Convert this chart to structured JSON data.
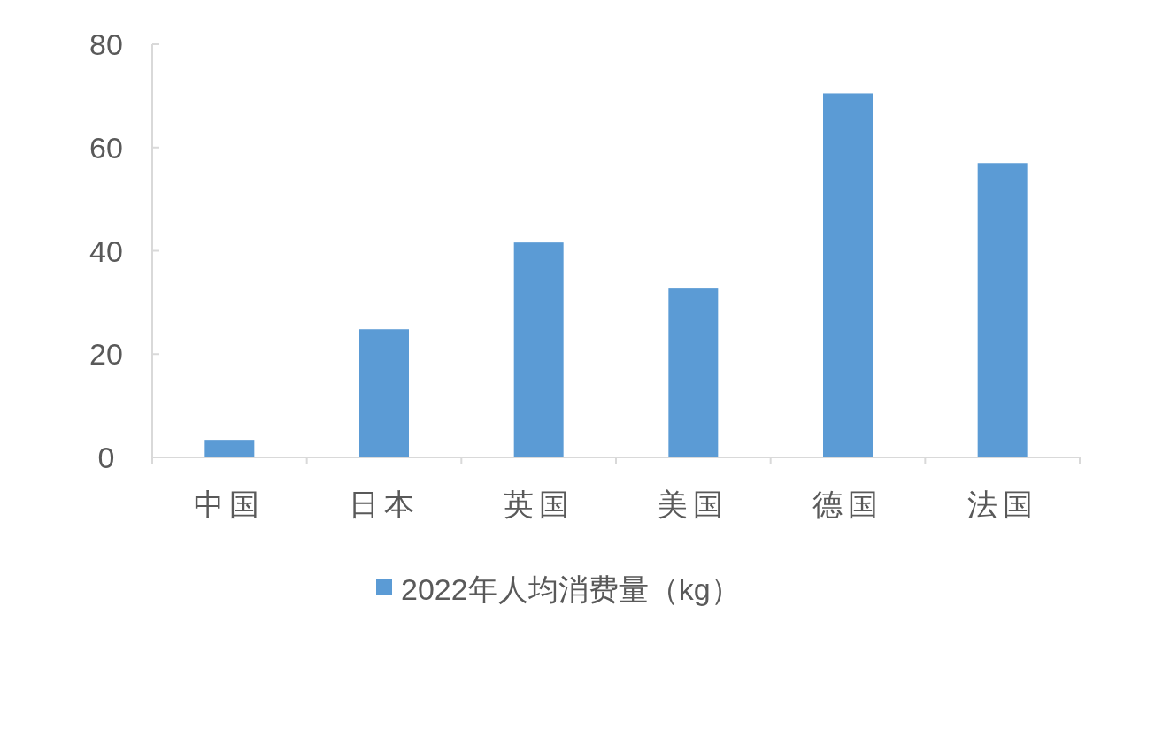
{
  "chart_data": {
    "type": "bar",
    "categories": [
      "中国",
      "日本",
      "英国",
      "美国",
      "德国",
      "法国"
    ],
    "series": [
      {
        "name": "2022年人均消费量（kg）",
        "color": "#5b9bd5",
        "values": [
          3.4,
          24.8,
          41.6,
          32.7,
          70.5,
          57.0
        ]
      }
    ],
    "ylim": [
      0,
      80
    ],
    "yticks": [
      0,
      20,
      40,
      60,
      80
    ],
    "legend": "bottom"
  }
}
